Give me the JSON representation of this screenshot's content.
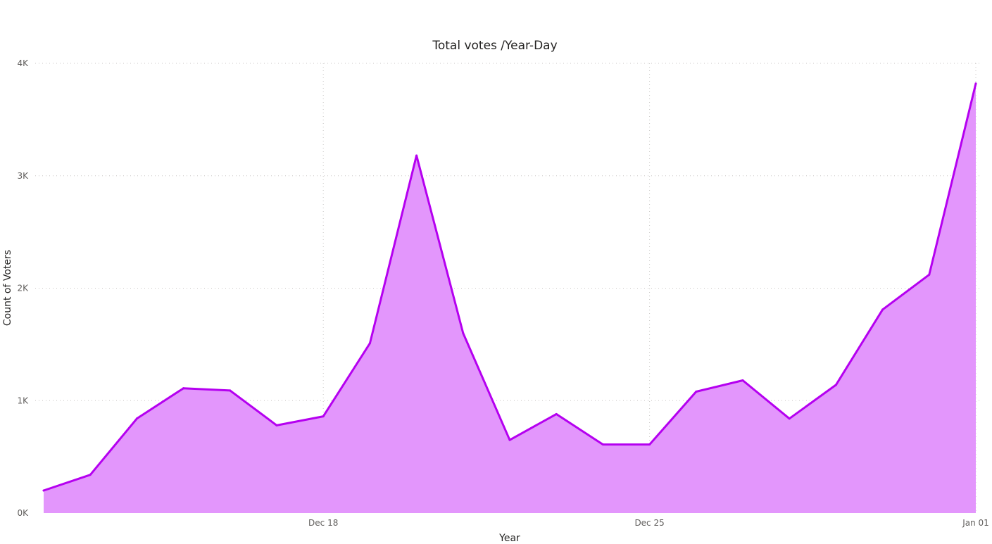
{
  "chart_data": {
    "type": "area",
    "title": "Total votes /Year-Day",
    "xlabel": "Year",
    "ylabel": "Count of Voters",
    "x": [
      "2022-12-12",
      "2022-12-13",
      "2022-12-14",
      "2022-12-15",
      "2022-12-16",
      "2022-12-17",
      "2022-12-18",
      "2022-12-19",
      "2022-12-20",
      "2022-12-21",
      "2022-12-22",
      "2022-12-23",
      "2022-12-24",
      "2022-12-25",
      "2022-12-26",
      "2022-12-27",
      "2022-12-28",
      "2022-12-29",
      "2022-12-30",
      "2022-12-31",
      "2023-01-01"
    ],
    "values": [
      200,
      340,
      840,
      1110,
      1090,
      780,
      860,
      1510,
      3180,
      1600,
      650,
      880,
      610,
      610,
      1080,
      1180,
      840,
      1140,
      1810,
      2120,
      3820
    ],
    "x_ticks": [
      {
        "x": "2022-12-18",
        "label": "Dec 18"
      },
      {
        "x": "2022-12-25",
        "label": "Dec 25"
      },
      {
        "x": "2023-01-01",
        "label": "Jan 01"
      }
    ],
    "y_ticks": [
      {
        "value": 0,
        "label": "0K"
      },
      {
        "value": 1000,
        "label": "1K"
      },
      {
        "value": 2000,
        "label": "2K"
      },
      {
        "value": 3000,
        "label": "3K"
      },
      {
        "value": 4000,
        "label": "4K"
      }
    ],
    "ylim": [
      0,
      4000
    ],
    "grid": true,
    "line_color": "#b500f0",
    "fill_color": "#e396fc"
  }
}
